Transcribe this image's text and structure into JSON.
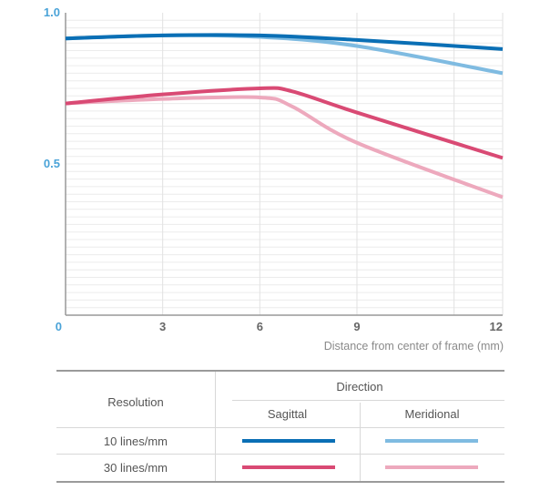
{
  "chart_data": {
    "type": "line",
    "xlabel": "Distance from center of frame (mm)",
    "ylabel": "",
    "xlim": [
      0,
      13.5
    ],
    "ylim": [
      0,
      1.0
    ],
    "x_ticks": [
      "0",
      "3",
      "6",
      "9",
      "12"
    ],
    "y_ticks": [
      "1.0",
      "0.5"
    ],
    "grid": "horizontal minor lines, vertical at x ticks",
    "series": [
      {
        "name": "10 lines/mm Sagittal",
        "color": "#0a6fb5",
        "x": [
          0,
          3,
          6,
          9,
          13.5
        ],
        "y": [
          0.915,
          0.925,
          0.925,
          0.91,
          0.88
        ]
      },
      {
        "name": "10 lines/mm Meridional",
        "color": "#7fbbe1",
        "x": [
          0,
          3,
          6,
          9,
          13.5
        ],
        "y": [
          0.915,
          0.925,
          0.92,
          0.89,
          0.8
        ]
      },
      {
        "name": "30 lines/mm Sagittal",
        "color": "#d94a74",
        "x": [
          0,
          3,
          6,
          7,
          9,
          13.5
        ],
        "y": [
          0.7,
          0.73,
          0.75,
          0.74,
          0.67,
          0.52
        ]
      },
      {
        "name": "30 lines/mm Meridional",
        "color": "#eda9bd",
        "x": [
          0,
          3,
          6,
          7,
          9,
          13.5
        ],
        "y": [
          0.7,
          0.715,
          0.72,
          0.69,
          0.57,
          0.39
        ]
      }
    ]
  },
  "legend": {
    "row_header": "Resolution",
    "col_group": "Direction",
    "col_sagittal": "Sagittal",
    "col_meridional": "Meridional",
    "row_10": "10 lines/mm",
    "row_30": "30 lines/mm"
  }
}
